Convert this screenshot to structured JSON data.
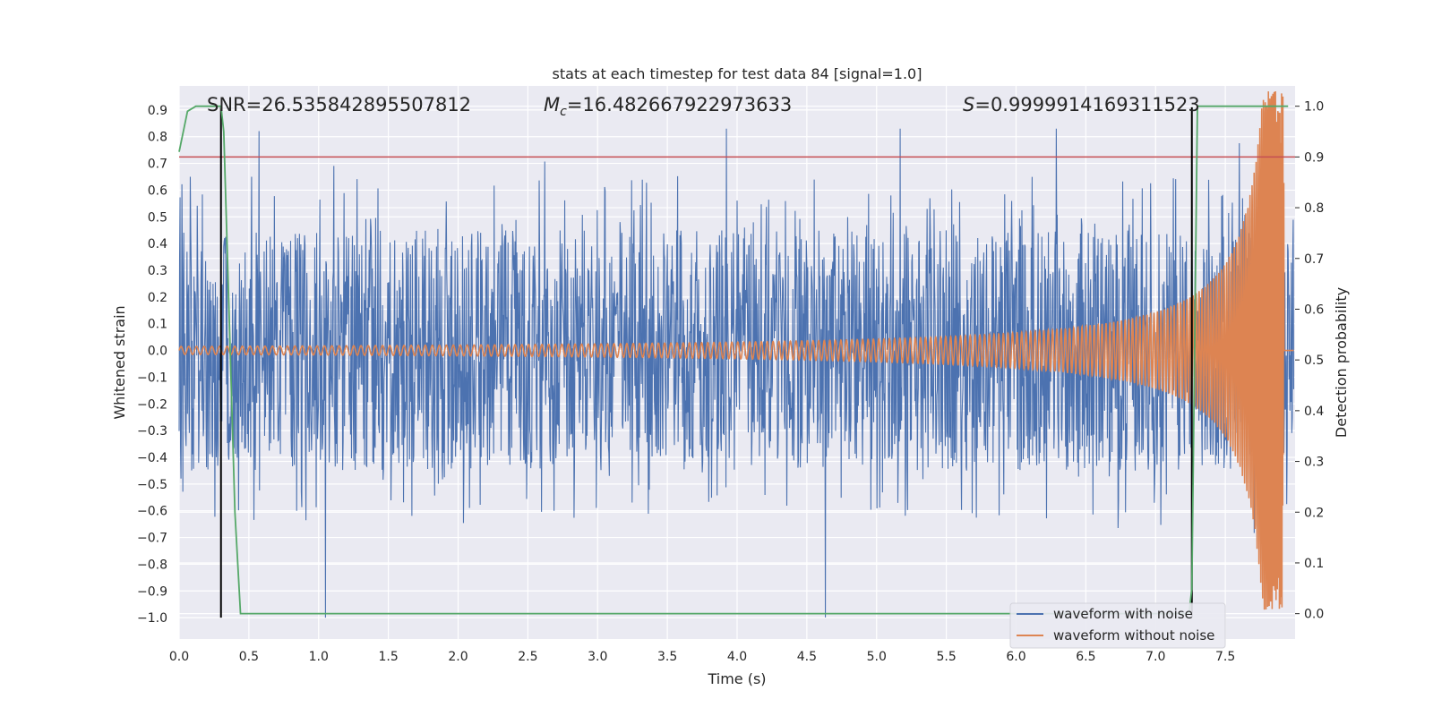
{
  "chart_data": {
    "type": "line",
    "title": "stats at each timestep for test data 84 [signal=1.0]",
    "xlabel": "Time (s)",
    "ylabel_left": "Whitened strain",
    "ylabel_right": "Detection probability",
    "xlim": [
      0.0,
      8.0
    ],
    "ylim_left": [
      -1.08,
      0.99
    ],
    "ylim_right": [
      -0.05,
      1.04
    ],
    "x_ticks": [
      "0.0",
      "0.5",
      "1.0",
      "1.5",
      "2.0",
      "2.5",
      "3.0",
      "3.5",
      "4.0",
      "4.5",
      "5.0",
      "5.5",
      "6.0",
      "6.5",
      "7.0",
      "7.5"
    ],
    "y_left_ticks": [
      "−1.0",
      "−0.9",
      "−0.8",
      "−0.7",
      "−0.6",
      "−0.5",
      "−0.4",
      "−0.3",
      "−0.2",
      "−0.1",
      "0.0",
      "0.1",
      "0.2",
      "0.3",
      "0.4",
      "0.5",
      "0.6",
      "0.7",
      "0.8",
      "0.9"
    ],
    "y_right_ticks": [
      "0.0",
      "0.1",
      "0.2",
      "0.3",
      "0.4",
      "0.5",
      "0.6",
      "0.7",
      "0.8",
      "0.9",
      "1.0"
    ],
    "grid": true,
    "legend_position": "bottom-right",
    "annotations": {
      "snr": "SNR=26.535842895507812",
      "mc_symbol": "M",
      "mc_sub": "c",
      "mc_value": "=16.482667922973633",
      "s_symbol": "S",
      "s_value": "=0.9999914169311523"
    },
    "series": [
      {
        "name": "waveform with noise",
        "color": "#4c72b0",
        "axis": "left",
        "approx_range": [
          -1.0,
          0.83
        ],
        "typical_envelope": 0.45
      },
      {
        "name": "waveform without noise",
        "color": "#dd8452",
        "axis": "left",
        "note_shape": "chirp",
        "amplitude_start": 0.015,
        "amplitude_peak": 0.97,
        "merger_time": 7.92
      },
      {
        "name": "detection probability",
        "color": "#55a868",
        "axis": "right",
        "x": [
          0.0,
          0.06,
          0.12,
          0.3,
          0.32,
          0.4,
          0.44,
          7.24,
          7.26,
          7.3,
          7.95
        ],
        "y": [
          0.91,
          0.99,
          1.0,
          1.0,
          0.95,
          0.2,
          0.0,
          0.0,
          0.05,
          1.0,
          1.0
        ]
      }
    ],
    "threshold_line": {
      "axis": "right",
      "value": 0.9,
      "color": "#c44e52"
    },
    "vertical_markers": [
      {
        "x": 0.3,
        "y_from": -1.0,
        "y_to": 0.91,
        "color": "#000000"
      },
      {
        "x": 7.26,
        "y_from": -1.0,
        "y_to": 0.91,
        "color": "#000000"
      }
    ]
  }
}
